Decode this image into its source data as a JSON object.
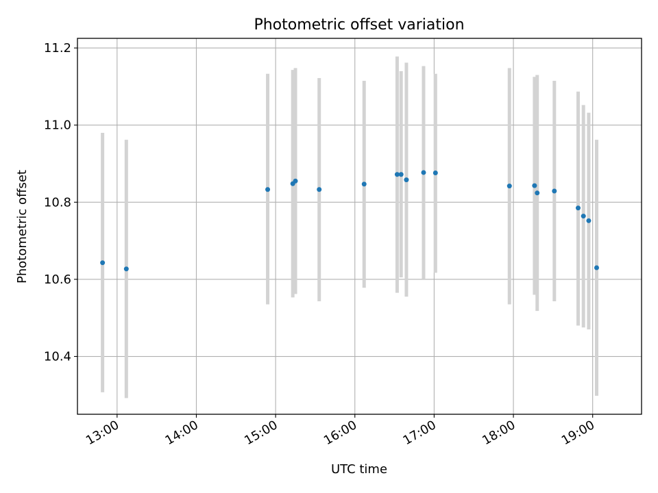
{
  "chart_data": {
    "type": "scatter",
    "title": "Photometric offset variation",
    "xlabel": "UTC time",
    "ylabel": "Photometric offset",
    "x_ticks": [
      "13:00",
      "14:00",
      "15:00",
      "16:00",
      "17:00",
      "18:00",
      "19:00"
    ],
    "y_ticks": [
      "10.4",
      "10.6",
      "10.8",
      "11.0",
      "11.2"
    ],
    "y_tick_values": [
      10.4,
      10.6,
      10.8,
      11.0,
      11.2
    ],
    "xlim": [
      "12:30",
      "19:37"
    ],
    "ylim": [
      10.25,
      11.225
    ],
    "grid": true,
    "marker_color": "#1f77b4",
    "errorbar_color": "#d3d3d3",
    "points": [
      {
        "time": "12:49",
        "y": 10.643,
        "ylow": 10.307,
        "yhigh": 10.98
      },
      {
        "time": "13:07",
        "y": 10.627,
        "ylow": 10.292,
        "yhigh": 10.962
      },
      {
        "time": "14:54",
        "y": 10.833,
        "ylow": 10.535,
        "yhigh": 11.133
      },
      {
        "time": "15:13",
        "y": 10.848,
        "ylow": 10.553,
        "yhigh": 11.143
      },
      {
        "time": "15:15",
        "y": 10.855,
        "ylow": 10.562,
        "yhigh": 11.148
      },
      {
        "time": "15:33",
        "y": 10.833,
        "ylow": 10.543,
        "yhigh": 11.122
      },
      {
        "time": "16:07",
        "y": 10.847,
        "ylow": 10.578,
        "yhigh": 11.115
      },
      {
        "time": "16:32",
        "y": 10.872,
        "ylow": 10.565,
        "yhigh": 11.178
      },
      {
        "time": "16:35",
        "y": 10.872,
        "ylow": 10.605,
        "yhigh": 11.14
      },
      {
        "time": "16:39",
        "y": 10.858,
        "ylow": 10.555,
        "yhigh": 11.162
      },
      {
        "time": "16:52",
        "y": 10.877,
        "ylow": 10.6,
        "yhigh": 11.153
      },
      {
        "time": "17:01",
        "y": 10.876,
        "ylow": 10.617,
        "yhigh": 11.133
      },
      {
        "time": "17:57",
        "y": 10.842,
        "ylow": 10.535,
        "yhigh": 11.148
      },
      {
        "time": "18:16",
        "y": 10.843,
        "ylow": 10.56,
        "yhigh": 11.125
      },
      {
        "time": "18:18",
        "y": 10.824,
        "ylow": 10.518,
        "yhigh": 11.13
      },
      {
        "time": "18:31",
        "y": 10.829,
        "ylow": 10.543,
        "yhigh": 11.115
      },
      {
        "time": "18:49",
        "y": 10.785,
        "ylow": 10.48,
        "yhigh": 11.087
      },
      {
        "time": "18:53",
        "y": 10.764,
        "ylow": 10.475,
        "yhigh": 11.052
      },
      {
        "time": "18:57",
        "y": 10.752,
        "ylow": 10.47,
        "yhigh": 11.032
      },
      {
        "time": "19:03",
        "y": 10.63,
        "ylow": 10.298,
        "yhigh": 10.962
      }
    ]
  }
}
